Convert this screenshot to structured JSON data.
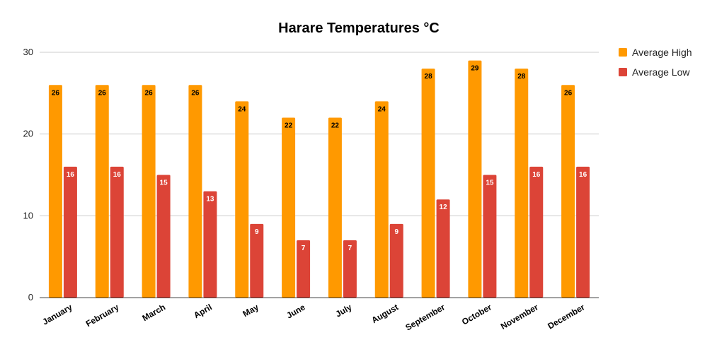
{
  "chart_data": {
    "type": "bar",
    "title": "Harare Temperatures °C",
    "xlabel": "",
    "ylabel": "",
    "ylim": [
      0,
      30
    ],
    "yticks": [
      0,
      10,
      20,
      30
    ],
    "grid": true,
    "legend_position": "right",
    "categories": [
      "January",
      "February",
      "March",
      "April",
      "May",
      "June",
      "July",
      "August",
      "September",
      "October",
      "November",
      "December"
    ],
    "series": [
      {
        "name": "Average High",
        "color": "#ff9900",
        "label_color": "#000000",
        "values": [
          26,
          26,
          26,
          26,
          24,
          22,
          22,
          24,
          28,
          29,
          28,
          26
        ]
      },
      {
        "name": "Average Low",
        "color": "#dc4437",
        "label_color": "#ffffff",
        "values": [
          16,
          16,
          15,
          13,
          9,
          7,
          7,
          9,
          12,
          15,
          16,
          16
        ]
      }
    ]
  }
}
